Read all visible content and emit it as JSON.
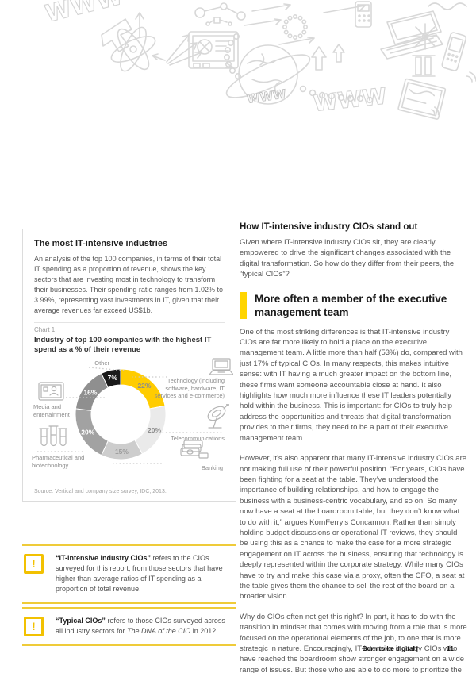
{
  "left_panel": {
    "title": "The most IT-intensive industries",
    "intro": "An analysis of the top 100 companies, in terms of their total IT spending as a proportion of revenue, shows the key sectors that are investing most in technology to transform their businesses. Their spending ratio ranges from 1.02% to 3.99%, representing vast investments in IT, given that their average revenues far exceed US$1b.",
    "chart_label": "Chart 1",
    "chart_title": "Industry of top 100 companies with the highest IT spend as a % of their revenue"
  },
  "chart_data": {
    "type": "pie",
    "donut": true,
    "title": "Industry of top 100 companies with the highest IT spend as a % of their revenue",
    "start_angle_deg": 0,
    "direction": "clockwise",
    "slices": [
      {
        "label": "Technology (including software, hardware, IT services and e-commerce)",
        "value": 22,
        "color": "#FFCC00",
        "label_color": "#8d8d8d",
        "icon": "laptop-icon"
      },
      {
        "label": "Telecommunications",
        "value": 20,
        "color": "#EAEAEA",
        "label_color": "#8d8d8d",
        "icon": "satellite-dish-icon"
      },
      {
        "label": "Banking",
        "value": 15,
        "color": "#CDCDCD",
        "label_color": "#9a9a9a",
        "icon": "money-stack-icon"
      },
      {
        "label": "Pharmaceutical and biotechnology",
        "value": 20,
        "color": "#A2A2A2",
        "label_color": "#ffffff",
        "icon": "test-tubes-icon"
      },
      {
        "label": "Media and entertainment",
        "value": 16,
        "color": "#8F8F8F",
        "label_color": "#ffffff",
        "icon": "tv-screen-icon"
      },
      {
        "label": "Other",
        "value": 7,
        "color": "#1A1A1A",
        "label_color": "#ffffff",
        "icon": null
      }
    ],
    "source": "Source: Vertical and company size survey, IDC, 2013."
  },
  "callouts": [
    {
      "bold": "“IT-intensive industry CIOs”",
      "text": " refers to the CIOs surveyed for this report, from those sectors that have higher than average ratios of IT spending as a proportion of total revenue."
    },
    {
      "bold": "“Typical CIOs”",
      "pre": " refers to those CIOs surveyed across all industry sectors for ",
      "italic": "The DNA of the CIO",
      "post": " in 2012."
    }
  ],
  "right_column": {
    "heading": "How IT-intensive industry CIOs stand out",
    "intro": "Given where IT-intensive industry CIOs sit, they are clearly empowered to drive the significant changes associated with the digital transformation. So how do they differ from their peers, the “typical CIOs”?",
    "subheading": "More often a member of the executive management team",
    "paragraphs": [
      "One of the most striking differences is that IT-intensive industry CIOs are far more likely to hold a place on the executive management team. A little more than half (53%) do, compared with just 17% of typical CIOs. In many respects, this makes intuitive sense: with IT having a much greater impact on the bottom line, these firms want someone accountable close at hand. It also highlights how much more influence these IT leaders potentially hold within the business. This is important: for CIOs to truly help address the opportunities and threats that digital transformation provides to their firms, they need to be a part of their executive management team.",
      "However, it’s also apparent that many IT-intensive industry CIOs are not making full use of their powerful position. “For years, CIOs have been fighting for a seat at the table. They’ve understood the importance of building relationships, and how to engage the business with a business-centric vocabulary, and so on. So many now have a seat at the boardroom table, but they don’t know what to do with it,” argues KornFerry’s Concannon. Rather than simply holding budget discussions or operational IT reviews, they should be using this as a chance to make the case for a more strategic engagement on IT across the business, ensuring that technology is deeply represented within the corporate strategy. While many CIOs have to try and make this case via a proxy, often the CFO, a seat at the table gives them the chance to sell the rest of the board on a broader vision.",
      "Why do CIOs often not get this right? In part, it has to do with the transition in mindset that comes with moving from a role that is more focused on the operational elements of the job, to one that is more strategic in nature. Encouragingly, IT-intensive industry CIOs who have reached the boardroom show stronger engagement on a wide range of issues. But those who are able to do more to prioritize the strategic elements of their role will do best over time."
    ]
  },
  "footer": {
    "title": "Born to be digital |",
    "page_number": "11"
  },
  "colors": {
    "accent_yellow": "#FFD500",
    "gold": "#F2C101",
    "rule_yellow": "#EFCB39",
    "doodle_gray": "#D8D8D8"
  }
}
